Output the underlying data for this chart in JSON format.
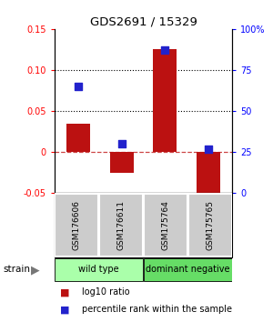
{
  "title": "GDS2691 / 15329",
  "samples": [
    "GSM176606",
    "GSM176611",
    "GSM175764",
    "GSM175765"
  ],
  "log10_ratio": [
    0.035,
    -0.025,
    0.125,
    -0.057
  ],
  "percentile_rank": [
    0.65,
    0.3,
    0.87,
    0.27
  ],
  "groups": [
    {
      "label": "wild type",
      "color": "#aaffaa",
      "samples": [
        0,
        1
      ]
    },
    {
      "label": "dominant negative",
      "color": "#66dd66",
      "samples": [
        2,
        3
      ]
    }
  ],
  "left_ylim": [
    -0.05,
    0.15
  ],
  "right_ylim": [
    0.0,
    1.0
  ],
  "left_yticks": [
    -0.05,
    0.0,
    0.05,
    0.1,
    0.15
  ],
  "left_yticklabels": [
    "-0.05",
    "0",
    "0.05",
    "0.10",
    "0.15"
  ],
  "right_yticks": [
    0.0,
    0.25,
    0.5,
    0.75,
    1.0
  ],
  "right_yticklabels": [
    "0",
    "25",
    "50",
    "75",
    "100%"
  ],
  "hlines": [
    0.05,
    0.1
  ],
  "hline_zero": 0.0,
  "bar_color": "#bb1111",
  "dot_color": "#2222cc",
  "bar_width": 0.55,
  "dot_size": 40,
  "label_log10": "log10 ratio",
  "label_percentile": "percentile rank within the sample",
  "strain_label": "strain",
  "bg_color": "#ffffff",
  "sample_box_color": "#cccccc",
  "group_colors": [
    "#aaffaa",
    "#66dd66"
  ]
}
